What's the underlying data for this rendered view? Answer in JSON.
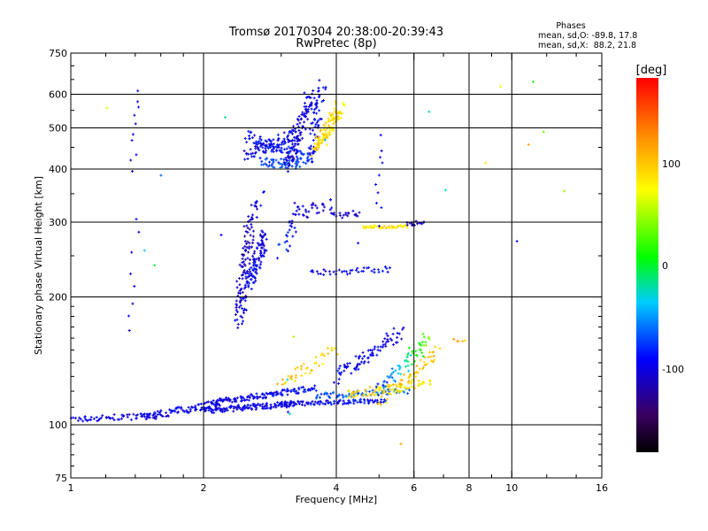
{
  "chart_data": {
    "type": "scatter",
    "title": "Tromsø 20170304 20:38:00-20:39:43",
    "subtitle": "RwPretec (8p)",
    "phases": {
      "heading": "Phases",
      "line_o": "mean, sd,O: -89.8, 17.8",
      "line_x": "mean, sd,X:  88.2, 21.8"
    },
    "xlabel": "Frequency [MHz]",
    "ylabel": "Stationary phase Virtual Height [km]",
    "x_scale": "log",
    "y_scale": "log",
    "xlim": [
      1,
      16
    ],
    "ylim": [
      75,
      750
    ],
    "x_ticks": [
      1,
      2,
      4,
      6,
      8,
      10,
      16
    ],
    "y_ticks": [
      75,
      100,
      200,
      300,
      400,
      500,
      600,
      750
    ],
    "grid": true,
    "colorbar": {
      "label": "[deg]",
      "range": [
        -180,
        180
      ],
      "ticks": [
        100,
        0,
        -100
      ]
    },
    "series": [
      {
        "shape": "line",
        "x0": 1.0,
        "x1": 1.55,
        "y0": 103,
        "y1": 105,
        "ph0": -100,
        "ph1": -100,
        "jitter": 0.02,
        "n": 55
      },
      {
        "shape": "line",
        "x0": 1.45,
        "x1": 2.2,
        "y0": 104,
        "y1": 113,
        "ph0": -100,
        "ph1": -95,
        "jitter": 0.025,
        "n": 90
      },
      {
        "shape": "line",
        "x0": 2.0,
        "x1": 3.2,
        "y0": 108,
        "y1": 112,
        "ph0": -100,
        "ph1": -95,
        "jitter": 0.02,
        "n": 120
      },
      {
        "shape": "line",
        "x0": 2.1,
        "x1": 3.6,
        "y0": 113,
        "y1": 122,
        "ph0": -100,
        "ph1": -90,
        "jitter": 0.02,
        "n": 120
      },
      {
        "shape": "line",
        "x0": 3.0,
        "x1": 5.2,
        "y0": 112,
        "y1": 114,
        "ph0": -100,
        "ph1": -85,
        "jitter": 0.015,
        "n": 100
      },
      {
        "shape": "line",
        "x0": 3.6,
        "x1": 5.8,
        "y0": 117,
        "y1": 120,
        "ph0": -70,
        "ph1": -60,
        "jitter": 0.02,
        "n": 70
      },
      {
        "shape": "line",
        "x0": 4.2,
        "x1": 6.5,
        "y0": 118,
        "y1": 125,
        "ph0": 90,
        "ph1": 80,
        "jitter": 0.03,
        "n": 70
      },
      {
        "shape": "line",
        "x0": 5.0,
        "x1": 6.8,
        "y0": 113,
        "y1": 150,
        "ph0": 95,
        "ph1": 100,
        "jitter": 0.04,
        "n": 60
      },
      {
        "shape": "line",
        "x0": 4.0,
        "x1": 5.6,
        "y0": 130,
        "y1": 165,
        "ph0": -95,
        "ph1": -100,
        "jitter": 0.05,
        "n": 80
      },
      {
        "shape": "line",
        "x0": 5.0,
        "x1": 6.5,
        "y0": 120,
        "y1": 160,
        "ph0": -90,
        "ph1": 40,
        "jitter": 0.05,
        "n": 60
      },
      {
        "shape": "line",
        "x0": 3.0,
        "x1": 4.0,
        "y0": 125,
        "y1": 150,
        "ph0": 100,
        "ph1": 90,
        "jitter": 0.05,
        "n": 40
      },
      {
        "shape": "line",
        "x0": 2.4,
        "x1": 2.55,
        "y0": 175,
        "y1": 290,
        "ph0": -100,
        "ph1": -120,
        "jitter": 0.06,
        "n": 110
      },
      {
        "shape": "line",
        "x0": 2.55,
        "x1": 2.75,
        "y0": 215,
        "y1": 280,
        "ph0": -90,
        "ph1": -105,
        "jitter": 0.05,
        "n": 90
      },
      {
        "shape": "line",
        "x0": 2.55,
        "x1": 2.7,
        "y0": 300,
        "y1": 350,
        "ph0": -100,
        "ph1": -100,
        "jitter": 0.04,
        "n": 20
      },
      {
        "shape": "line",
        "x0": 3.0,
        "x1": 3.3,
        "y0": 255,
        "y1": 330,
        "ph0": -80,
        "ph1": -100,
        "jitter": 0.05,
        "n": 30
      },
      {
        "shape": "line",
        "x0": 3.3,
        "x1": 3.9,
        "y0": 315,
        "y1": 330,
        "ph0": -110,
        "ph1": -100,
        "jitter": 0.04,
        "n": 25
      },
      {
        "shape": "line",
        "x0": 3.9,
        "x1": 4.5,
        "y0": 310,
        "y1": 315,
        "ph0": -110,
        "ph1": -110,
        "jitter": 0.02,
        "n": 20
      },
      {
        "shape": "line",
        "x0": 4.6,
        "x1": 5.8,
        "y0": 292,
        "y1": 293,
        "ph0": 80,
        "ph1": 85,
        "jitter": 0.01,
        "n": 40
      },
      {
        "shape": "line",
        "x0": 5.8,
        "x1": 6.3,
        "y0": 296,
        "y1": 300,
        "ph0": -120,
        "ph1": -110,
        "jitter": 0.015,
        "n": 15
      },
      {
        "shape": "line",
        "x0": 3.5,
        "x1": 5.3,
        "y0": 228,
        "y1": 232,
        "ph0": -100,
        "ph1": -90,
        "jitter": 0.02,
        "n": 40
      },
      {
        "shape": "line",
        "x0": 2.5,
        "x1": 3.2,
        "y0": 430,
        "y1": 480,
        "ph0": -100,
        "ph1": -95,
        "jitter": 0.04,
        "n": 70
      },
      {
        "shape": "line",
        "x0": 2.5,
        "x1": 3.5,
        "y0": 480,
        "y1": 420,
        "ph0": -90,
        "ph1": -80,
        "jitter": 0.04,
        "n": 80
      },
      {
        "shape": "line",
        "x0": 2.7,
        "x1": 3.3,
        "y0": 415,
        "y1": 410,
        "ph0": -75,
        "ph1": -70,
        "jitter": 0.03,
        "n": 50
      },
      {
        "shape": "line",
        "x0": 3.1,
        "x1": 3.5,
        "y0": 410,
        "y1": 600,
        "ph0": -110,
        "ph1": -100,
        "jitter": 0.05,
        "n": 100
      },
      {
        "shape": "line",
        "x0": 3.5,
        "x1": 3.7,
        "y0": 420,
        "y1": 630,
        "ph0": -95,
        "ph1": -90,
        "jitter": 0.05,
        "n": 60
      },
      {
        "shape": "line",
        "x0": 3.6,
        "x1": 4.1,
        "y0": 445,
        "y1": 560,
        "ph0": 95,
        "ph1": 80,
        "jitter": 0.05,
        "n": 110
      },
      {
        "shape": "line",
        "x0": 1.38,
        "x1": 1.42,
        "y0": 400,
        "y1": 600,
        "ph0": -100,
        "ph1": -100,
        "jitter": 0.03,
        "n": 10
      },
      {
        "shape": "line",
        "x0": 1.37,
        "x1": 1.41,
        "y0": 165,
        "y1": 300,
        "ph0": -100,
        "ph1": -100,
        "jitter": 0.04,
        "n": 8
      },
      {
        "shape": "line",
        "x0": 5.0,
        "x1": 5.0,
        "y0": 300,
        "y1": 470,
        "ph0": -100,
        "ph1": -90,
        "jitter": 0.04,
        "n": 10
      },
      {
        "shape": "line",
        "x0": 7.4,
        "x1": 7.8,
        "y0": 158,
        "y1": 158,
        "ph0": 130,
        "ph1": 90,
        "jitter": 0.01,
        "n": 5
      },
      {
        "shape": "scatter",
        "xlim": [
          1,
          16
        ],
        "ylim": [
          80,
          700
        ],
        "ph0": -120,
        "ph1": 120,
        "n": 22
      }
    ]
  }
}
